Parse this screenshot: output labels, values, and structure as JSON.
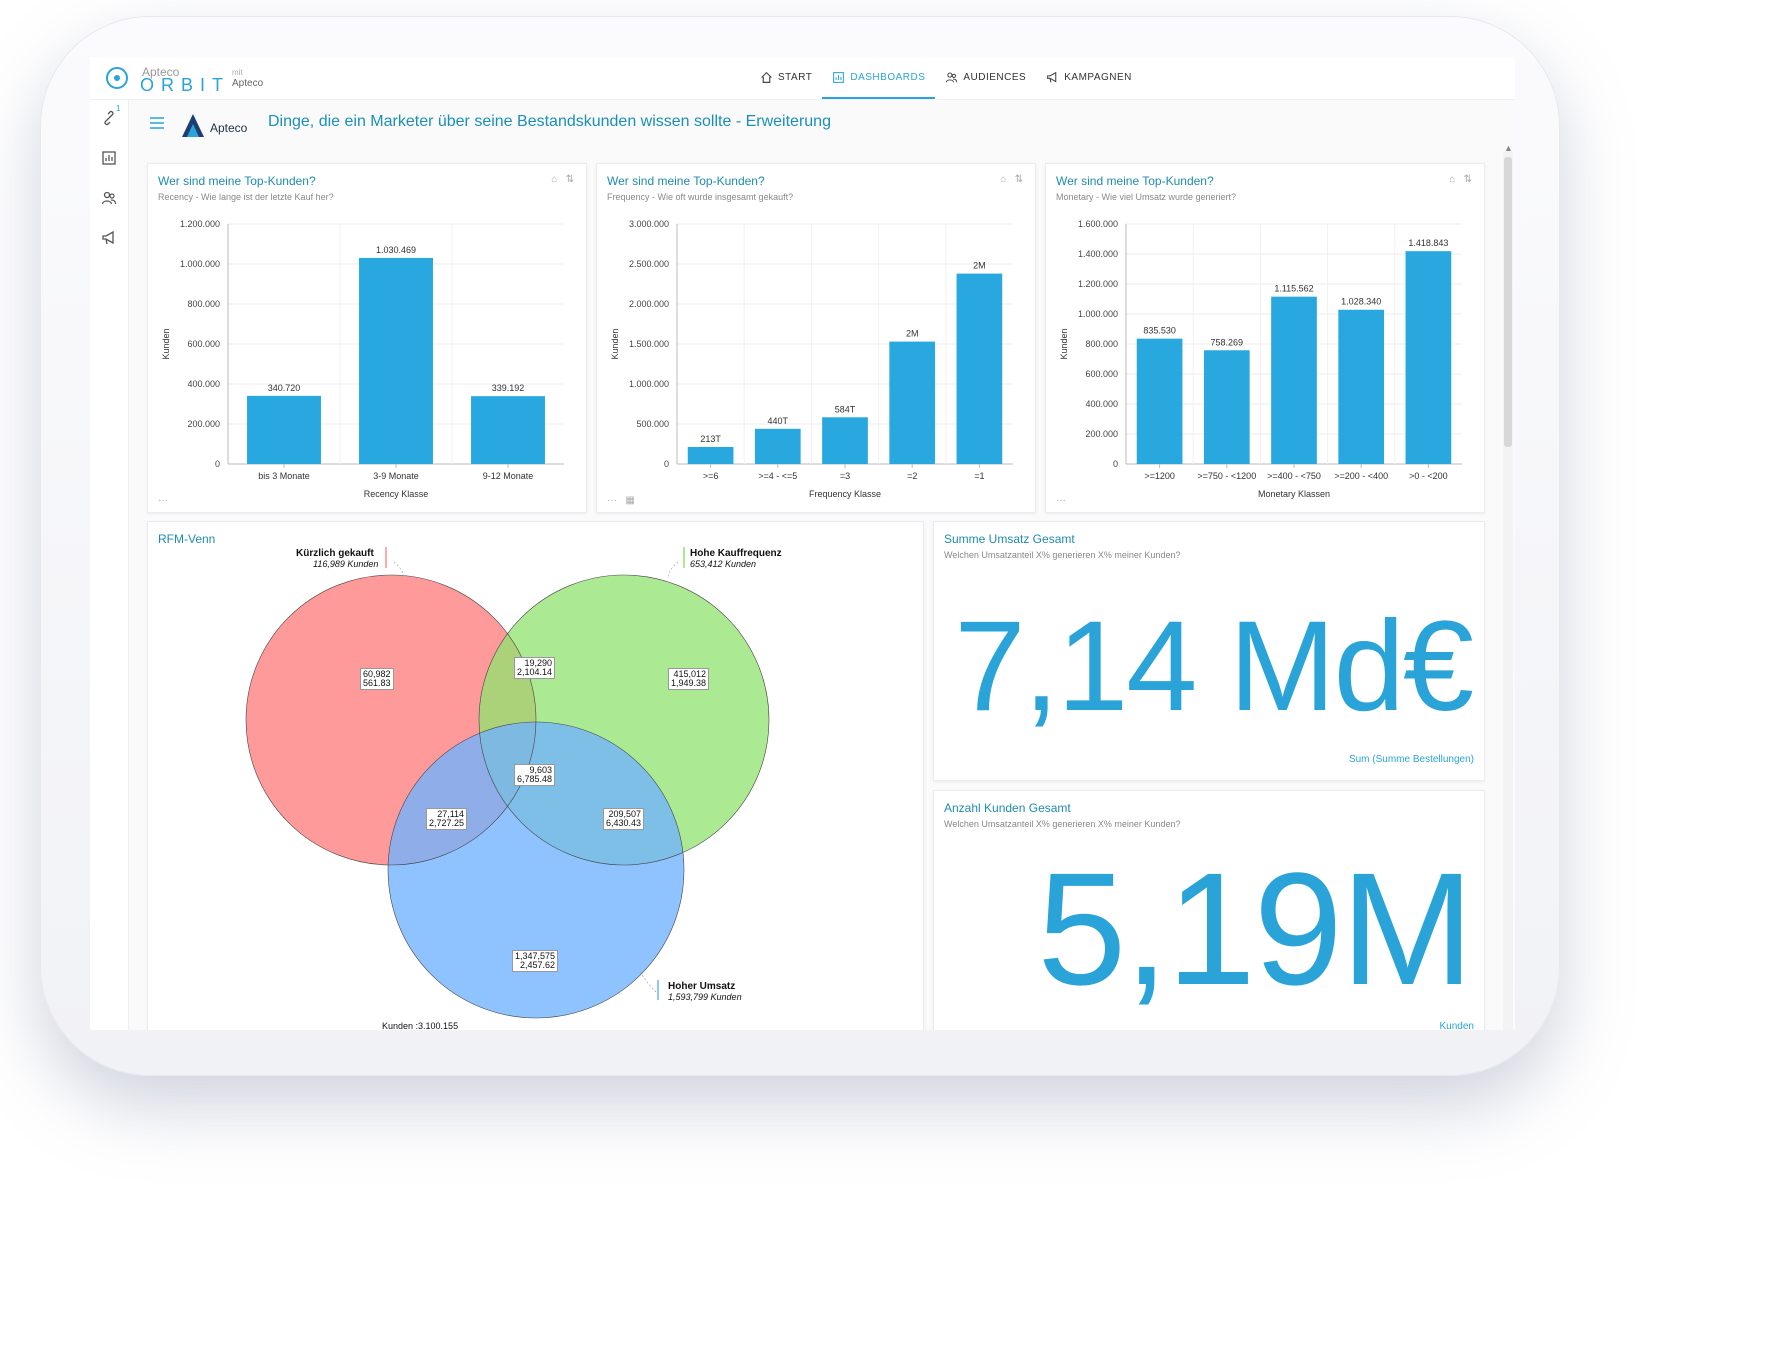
{
  "app": {
    "brand_top": "Apteco",
    "brand_name": "ORBIT",
    "mit": "mit",
    "mit_brand": "Apteco"
  },
  "nav": [
    {
      "label": "START",
      "icon": "home-icon",
      "active": false
    },
    {
      "label": "DASHBOARDS",
      "icon": "dashboard-icon",
      "active": true
    },
    {
      "label": "AUDIENCES",
      "icon": "users-icon",
      "active": false
    },
    {
      "label": "KAMPAGNEN",
      "icon": "megaphone-icon",
      "active": false
    }
  ],
  "sidebar": {
    "badge": "1",
    "icons": [
      "link-icon",
      "chart-icon",
      "users-icon",
      "megaphone-icon"
    ]
  },
  "page": {
    "brand_logo_text": "Apteco",
    "title": "Dinge, die ein Marketer über seine Bestandskunden wissen sollte - Erweiterung"
  },
  "cards": {
    "recency": {
      "title": "Wer sind meine Top-Kunden?",
      "subtitle": "Recency - Wie lange ist der letzte Kauf her?"
    },
    "frequency": {
      "title": "Wer sind meine Top-Kunden?",
      "subtitle": "Frequency - Wie oft wurde insgesamt gekauft?"
    },
    "monetary": {
      "title": "Wer sind meine Top-Kunden?",
      "subtitle": "Monetary - Wie viel Umsatz wurde generiert?"
    },
    "venn": {
      "title": "RFM-Venn",
      "sets": [
        {
          "name": "Kürzlich gekauft",
          "count": "116,989 Kunden",
          "color": "#ff8c8c"
        },
        {
          "name": "Hohe Kauffrequenz",
          "count": "653,412 Kunden",
          "color": "#99e67d"
        },
        {
          "name": "Hoher Umsatz",
          "count": "1,593,799 Kunden",
          "color": "#7cbcff"
        }
      ],
      "regions": {
        "r_only": [
          "60,982",
          "561.83"
        ],
        "f_only": [
          "415,012",
          "1,949.38"
        ],
        "m_only": [
          "1,347,575",
          "2,457.62"
        ],
        "rf": [
          "19,290",
          "2,104.14"
        ],
        "rm": [
          "27,114",
          "2,727.25"
        ],
        "fm": [
          "209,507",
          "6,430.43"
        ],
        "rfm": [
          "9,603",
          "6,785.48"
        ]
      },
      "total": "Kunden :3.100.155"
    },
    "umsatz": {
      "title": "Summe Umsatz Gesamt",
      "subtitle": "Welchen Umsatzanteil X% generieren X% meiner Kunden?",
      "value": "7,14 Md€",
      "foot": "Sum (Summe Bestellungen)"
    },
    "kunden": {
      "title": "Anzahl Kunden Gesamt",
      "subtitle": "Welchen Umsatzanteil X% generieren X% meiner Kunden?",
      "value": "5,19M",
      "foot": "Kunden"
    }
  },
  "chart_data": [
    {
      "type": "bar",
      "xlabel": "Recency Klasse",
      "ylabel": "Kunden",
      "categories": [
        "bis 3 Monate",
        "3-9 Monate",
        "9-12 Monate"
      ],
      "values": [
        340720,
        1030469,
        339192
      ],
      "value_labels": [
        "340.720",
        "1.030.469",
        "339.192"
      ],
      "ylim": [
        0,
        1200000
      ],
      "yticks": [
        0,
        200000,
        400000,
        600000,
        800000,
        1000000,
        1200000
      ],
      "ytick_labels": [
        "0",
        "200.000",
        "400.000",
        "600.000",
        "800.000",
        "1.000.000",
        "1.200.000"
      ],
      "color": "#29a8e0"
    },
    {
      "type": "bar",
      "xlabel": "Frequency Klasse",
      "ylabel": "Kunden",
      "categories": [
        ">=6",
        ">=4 - <=5",
        "=3",
        "=2",
        "=1"
      ],
      "values": [
        213000,
        440000,
        584000,
        1530000,
        2380000
      ],
      "value_labels": [
        "213T",
        "440T",
        "584T",
        "2M",
        "2M"
      ],
      "ylim": [
        0,
        3000000
      ],
      "yticks": [
        0,
        500000,
        1000000,
        1500000,
        2000000,
        2500000,
        3000000
      ],
      "ytick_labels": [
        "0",
        "500.000",
        "1.000.000",
        "1.500.000",
        "2.000.000",
        "2.500.000",
        "3.000.000"
      ],
      "color": "#29a8e0"
    },
    {
      "type": "bar",
      "xlabel": "Monetary Klassen",
      "ylabel": "Kunden",
      "categories": [
        ">=1200",
        ">=750 - <1200",
        ">=400 - <750",
        ">=200 - <400",
        ">0 - <200"
      ],
      "values": [
        835530,
        758269,
        1115562,
        1028340,
        1418843
      ],
      "value_labels": [
        "835.530",
        "758.269",
        "1.115.562",
        "1.028.340",
        "1.418.843"
      ],
      "ylim": [
        0,
        1600000
      ],
      "yticks": [
        0,
        200000,
        400000,
        600000,
        800000,
        1000000,
        1200000,
        1400000,
        1600000
      ],
      "ytick_labels": [
        "0",
        "200.000",
        "400.000",
        "600.000",
        "800.000",
        "1.000.000",
        "1.200.000",
        "1.400.000",
        "1.600.000"
      ],
      "color": "#29a8e0"
    }
  ]
}
